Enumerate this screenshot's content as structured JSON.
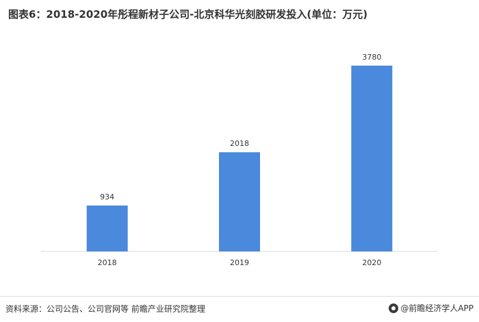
{
  "title": "图表6：2018-2020年彤程新材子公司-北京科华光刻胶研发投入(单位：万元)",
  "footer": {
    "source": "资料来源：公司公告、公司官网等 前瞻产业研究院整理",
    "brand": "@前瞻经济学人APP"
  },
  "colors": {
    "bar": "#4A89DC"
  },
  "chart_data": {
    "type": "bar",
    "categories": [
      "2018",
      "2019",
      "2020"
    ],
    "values": [
      934,
      2018,
      3780
    ],
    "title": "图表6：2018-2020年彤程新材子公司-北京科华光刻胶研发投入(单位：万元)",
    "xlabel": "",
    "ylabel": "",
    "ylim": [
      0,
      4000
    ],
    "grid": false,
    "data_labels": true
  }
}
